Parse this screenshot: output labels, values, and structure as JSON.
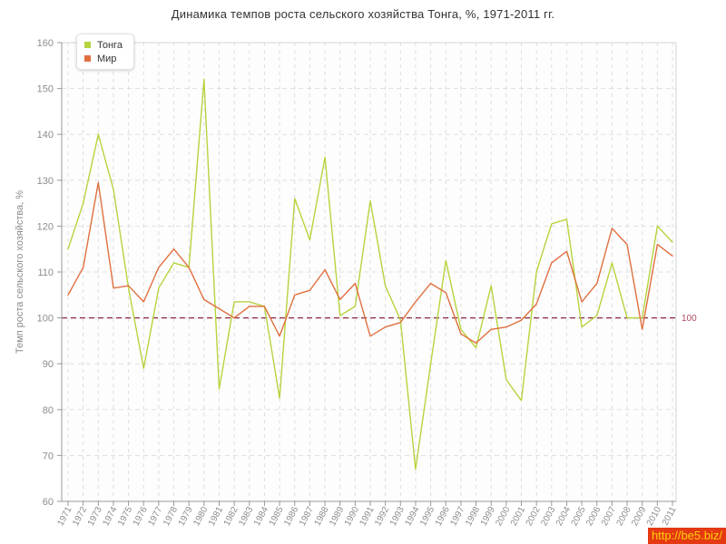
{
  "title": "Динамика темпов роста сельского хозяйства Тонга, %, 1971-2011 гг.",
  "watermark": {
    "text": "http://be5.biz/",
    "bg_color": "#e53911",
    "text_color": "#fecf0a"
  },
  "legend": {
    "position": "top-left",
    "items": [
      {
        "label": "Тонга",
        "color": "#b6d43e"
      },
      {
        "label": "Мир",
        "color": "#e0703f"
      }
    ]
  },
  "axes": {
    "ylabel": "Темп роста сельского хозяйства, %",
    "xlabel": "",
    "tick_label_color": "#8c8c8c",
    "axis_color": "#999999",
    "grid_color": "#dedede",
    "frame_color": "#d4d4d4",
    "plot_bg": "#fdfdfd"
  },
  "chart_data": {
    "type": "line",
    "title": "Динамика темпов роста сельского хозяйства Тонга, %, 1971-2011 гг.",
    "ylabel": "Темп роста сельского хозяйства, %",
    "xlabel": "",
    "ylim": [
      60,
      160
    ],
    "ytick_step": 10,
    "grid": true,
    "legend_position": "top-left",
    "x": [
      1971,
      1972,
      1973,
      1974,
      1975,
      1976,
      1977,
      1978,
      1979,
      1980,
      1981,
      1982,
      1983,
      1984,
      1985,
      1986,
      1987,
      1988,
      1989,
      1990,
      1991,
      1992,
      1993,
      1994,
      1995,
      1996,
      1997,
      1998,
      1999,
      2000,
      2001,
      2002,
      2003,
      2004,
      2005,
      2006,
      2007,
      2008,
      2009,
      2010,
      2011
    ],
    "series": [
      {
        "name": "Тонга",
        "color": "#b6d43e",
        "values": [
          115,
          125,
          140,
          128,
          106.5,
          89,
          106.5,
          112,
          111,
          152,
          84.5,
          103.5,
          103.5,
          102.5,
          82.5,
          126,
          117,
          135,
          100.5,
          102.5,
          125.5,
          107,
          99.5,
          67,
          90,
          112.5,
          97.5,
          93.5,
          107,
          86.5,
          82,
          110,
          120.5,
          121.5,
          98,
          100.5,
          112,
          100,
          100,
          120,
          116.5
        ]
      },
      {
        "name": "Мир",
        "color": "#e0703f",
        "values": [
          105,
          111,
          129.5,
          106.5,
          107,
          103.5,
          111,
          115,
          111,
          104,
          102,
          100,
          102.5,
          102.5,
          96,
          105,
          106,
          110.5,
          104,
          107.5,
          96,
          98,
          99,
          103.5,
          107.5,
          105.5,
          96.5,
          94.5,
          97.5,
          98,
          99.5,
          103,
          112,
          114.5,
          103.5,
          107.5,
          119.5,
          116,
          97.5,
          116,
          113.5
        ]
      }
    ],
    "ref_line": {
      "y": 100,
      "label": "100",
      "line_color": "#8e2840",
      "label_color": "#b04a5e"
    }
  }
}
